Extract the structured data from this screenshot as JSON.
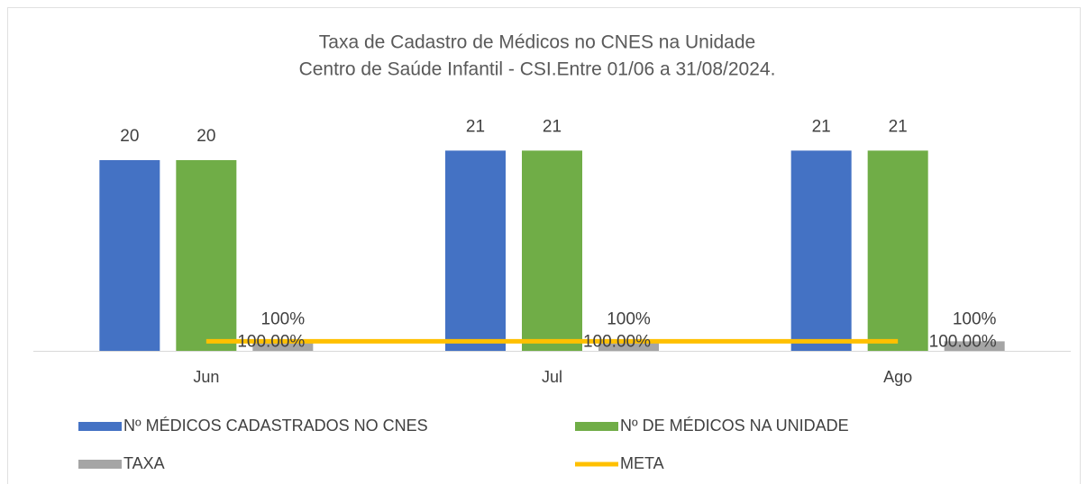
{
  "chart_data": {
    "type": "bar",
    "title": [
      "Taxa de Cadastro de Médicos no CNES na Unidade",
      "Centro de Saúde Infantil - CSI.Entre 01/06 a 31/08/2024."
    ],
    "categories": [
      "Jun",
      "Jul",
      "Ago"
    ],
    "ylim": [
      0,
      25
    ],
    "series": [
      {
        "name": "Nº MÉDICOS CADASTRADOS NO CNES",
        "color": "#4472c4",
        "values": [
          20,
          21,
          21
        ]
      },
      {
        "name": "Nº DE MÉDICOS NA UNIDADE",
        "color": "#70ad47",
        "values": [
          20,
          21,
          21
        ]
      },
      {
        "name": "TAXA",
        "color": "#a5a5a5",
        "values": [
          1,
          1,
          1
        ],
        "value_labels": [
          "100%",
          "100%",
          "100%"
        ]
      },
      {
        "name": "META",
        "color": "#ffc000",
        "type": "line",
        "values": [
          1,
          1,
          1
        ],
        "value_labels": [
          "100.00%",
          "100.00%",
          "100.00%"
        ]
      }
    ]
  }
}
